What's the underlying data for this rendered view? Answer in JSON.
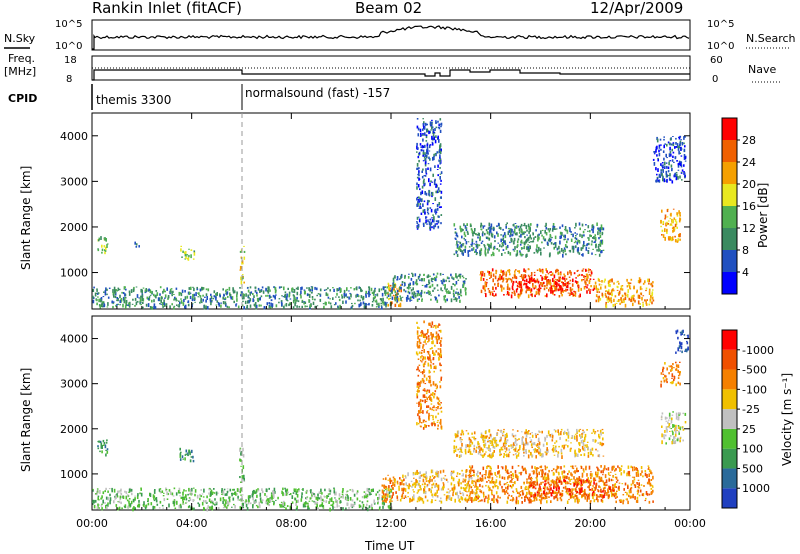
{
  "header": {
    "station": "Rankin Inlet (fitACF)",
    "beam": "Beam 02",
    "date": "12/Apr/2009"
  },
  "noise_panel": {
    "left_label": "N.Sky",
    "right_label": "N.Search",
    "left_ticks": [
      "10^5",
      "10^0"
    ],
    "right_ticks": [
      "10^5",
      "10^0"
    ]
  },
  "freq_panel": {
    "left_label": "Freq.",
    "left_unit": "[MHz]",
    "right_label": "Nave",
    "left_ticks": [
      "18",
      "8"
    ],
    "right_ticks": [
      "60",
      "0"
    ]
  },
  "cpid": {
    "label": "CPID",
    "segments": [
      {
        "name": "themis 3300",
        "start_hour": 0.0
      },
      {
        "name": "normalsound (fast) -157",
        "start_hour": 6.0
      }
    ]
  },
  "chart_data": [
    {
      "type": "heatmap",
      "title": "Power",
      "ylabel": "Slant Range [km]",
      "xlabel": "",
      "xlim": [
        0,
        24
      ],
      "ylim": [
        200,
        4500
      ],
      "x_ticks": [
        "00:00",
        "04:00",
        "08:00",
        "12:00",
        "16:00",
        "20:00",
        "00:00"
      ],
      "y_ticks": [
        1000,
        2000,
        3000,
        4000
      ],
      "colorbar": {
        "label": "Power [dB]",
        "tick_labels": [
          "4",
          "8",
          "12",
          "16",
          "20",
          "24",
          "28"
        ],
        "colors": [
          "#0000ff",
          "#2050c0",
          "#3a8a60",
          "#50b050",
          "#e8e820",
          "#f5a000",
          "#f06000",
          "#ff0000"
        ]
      },
      "regions": [
        {
          "t0": 0.2,
          "t1": 0.6,
          "r0": 1400,
          "r1": 1800,
          "level": 3
        },
        {
          "t0": 1.7,
          "t1": 1.9,
          "r0": 1550,
          "r1": 1700,
          "level": 2
        },
        {
          "t0": 3.5,
          "t1": 4.1,
          "r0": 1300,
          "r1": 1600,
          "level": 3
        },
        {
          "t0": 5.9,
          "t1": 6.1,
          "r0": 800,
          "r1": 1600,
          "level": 4
        },
        {
          "t0": 0.0,
          "t1": 12.0,
          "r0": 250,
          "r1": 700,
          "level": 2
        },
        {
          "t0": 11.8,
          "t1": 12.4,
          "r0": 300,
          "r1": 800,
          "level": 5
        },
        {
          "t0": 12.0,
          "t1": 15.0,
          "r0": 400,
          "r1": 1000,
          "level": 2
        },
        {
          "t0": 13.0,
          "t1": 14.0,
          "r0": 2000,
          "r1": 4400,
          "level": 1
        },
        {
          "t0": 15.5,
          "t1": 20.2,
          "r0": 500,
          "r1": 1100,
          "level": 6
        },
        {
          "t0": 17.0,
          "t1": 19.0,
          "r0": 600,
          "r1": 900,
          "level": 7
        },
        {
          "t0": 20.2,
          "t1": 22.5,
          "r0": 300,
          "r1": 900,
          "level": 5
        },
        {
          "t0": 14.5,
          "t1": 20.5,
          "r0": 1400,
          "r1": 2100,
          "level": 2
        },
        {
          "t0": 22.8,
          "t1": 23.6,
          "r0": 1700,
          "r1": 2400,
          "level": 5
        },
        {
          "t0": 22.5,
          "t1": 23.8,
          "r0": 3000,
          "r1": 4000,
          "level": 1
        }
      ]
    },
    {
      "type": "heatmap",
      "title": "Velocity",
      "ylabel": "Slant Range [km]",
      "xlabel": "Time UT",
      "xlim": [
        0,
        24
      ],
      "ylim": [
        200,
        4500
      ],
      "x_ticks": [
        "00:00",
        "04:00",
        "08:00",
        "12:00",
        "16:00",
        "20:00",
        "00:00"
      ],
      "y_ticks": [
        1000,
        2000,
        3000,
        4000
      ],
      "colorbar": {
        "label": "Velocity [m s⁻¹]",
        "tick_labels": [
          "1000",
          "500",
          "100",
          "25",
          "-25",
          "-100",
          "-500",
          "-1000"
        ],
        "colors": [
          "#2040c0",
          "#2a6a9a",
          "#3a9a50",
          "#50c030",
          "#c0c0c0",
          "#f0c000",
          "#f58000",
          "#f05000",
          "#ff0000"
        ]
      },
      "regions": [
        {
          "t0": 0.2,
          "t1": 0.6,
          "r0": 1400,
          "r1": 1800,
          "level": 2
        },
        {
          "t0": 3.5,
          "t1": 4.1,
          "r0": 1300,
          "r1": 1600,
          "level": 2
        },
        {
          "t0": 5.9,
          "t1": 6.1,
          "r0": 800,
          "r1": 1600,
          "level": 3
        },
        {
          "t0": 0.0,
          "t1": 12.0,
          "r0": 250,
          "r1": 700,
          "level": 3
        },
        {
          "t0": 11.6,
          "t1": 12.6,
          "r0": 400,
          "r1": 1000,
          "level": 6
        },
        {
          "t0": 12.5,
          "t1": 15.5,
          "r0": 400,
          "r1": 1100,
          "level": 5
        },
        {
          "t0": 13.0,
          "t1": 14.0,
          "r0": 2000,
          "r1": 4400,
          "level": 6
        },
        {
          "t0": 15.0,
          "t1": 22.5,
          "r0": 400,
          "r1": 1200,
          "level": 6
        },
        {
          "t0": 17.5,
          "t1": 21.0,
          "r0": 500,
          "r1": 900,
          "level": 7
        },
        {
          "t0": 14.5,
          "t1": 20.5,
          "r0": 1400,
          "r1": 2000,
          "level": 5
        },
        {
          "t0": 22.8,
          "t1": 23.8,
          "r0": 1700,
          "r1": 2400,
          "level": 4
        },
        {
          "t0": 22.8,
          "t1": 23.6,
          "r0": 3000,
          "r1": 3500,
          "level": 6
        },
        {
          "t0": 23.4,
          "t1": 23.9,
          "r0": 3700,
          "r1": 4200,
          "level": 0
        }
      ]
    }
  ]
}
